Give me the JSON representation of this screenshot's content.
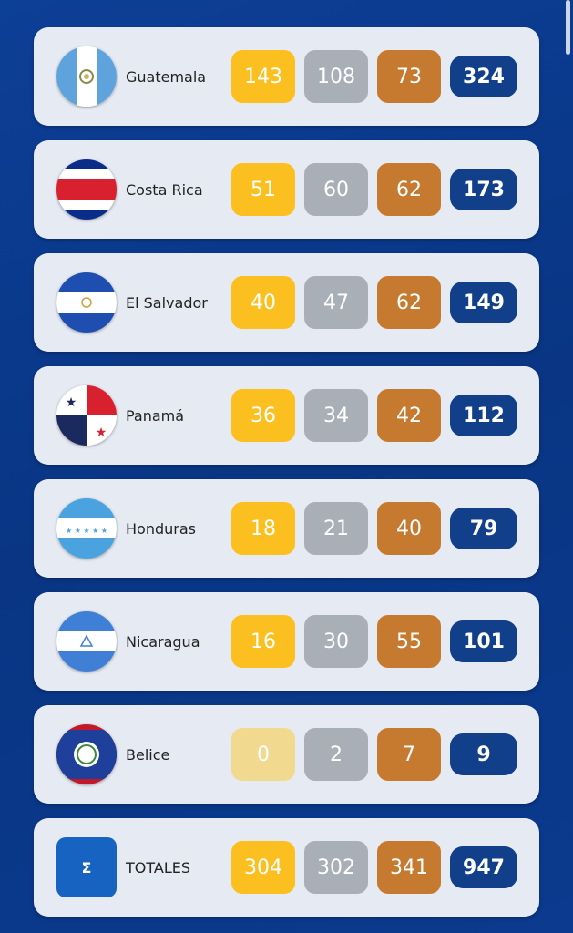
{
  "colors": {
    "gold": "#fbbf1f",
    "silver": "#a9afb6",
    "bronze": "#c57a30",
    "total": "#123f8a",
    "background": "#0a3a8c"
  },
  "countries": [
    {
      "name": "Guatemala",
      "flag": "guatemala-flag",
      "gold": "143",
      "silver": "108",
      "bronze": "73",
      "total": "324"
    },
    {
      "name": "Costa Rica",
      "flag": "costa-rica-flag",
      "gold": "51",
      "silver": "60",
      "bronze": "62",
      "total": "173"
    },
    {
      "name": "El Salvador",
      "flag": "el-salvador-flag",
      "gold": "40",
      "silver": "47",
      "bronze": "62",
      "total": "149"
    },
    {
      "name": "Panamá",
      "flag": "panama-flag",
      "gold": "36",
      "silver": "34",
      "bronze": "42",
      "total": "112"
    },
    {
      "name": "Honduras",
      "flag": "honduras-flag",
      "gold": "18",
      "silver": "21",
      "bronze": "40",
      "total": "79"
    },
    {
      "name": "Nicaragua",
      "flag": "nicaragua-flag",
      "gold": "16",
      "silver": "30",
      "bronze": "55",
      "total": "101"
    },
    {
      "name": "Belice",
      "flag": "belize-flag",
      "gold": "0",
      "silver": "2",
      "bronze": "7",
      "total": "9"
    }
  ],
  "totals": {
    "icon": "Σ",
    "label": "TOTALES",
    "gold": "304",
    "silver": "302",
    "bronze": "341",
    "total": "947"
  }
}
